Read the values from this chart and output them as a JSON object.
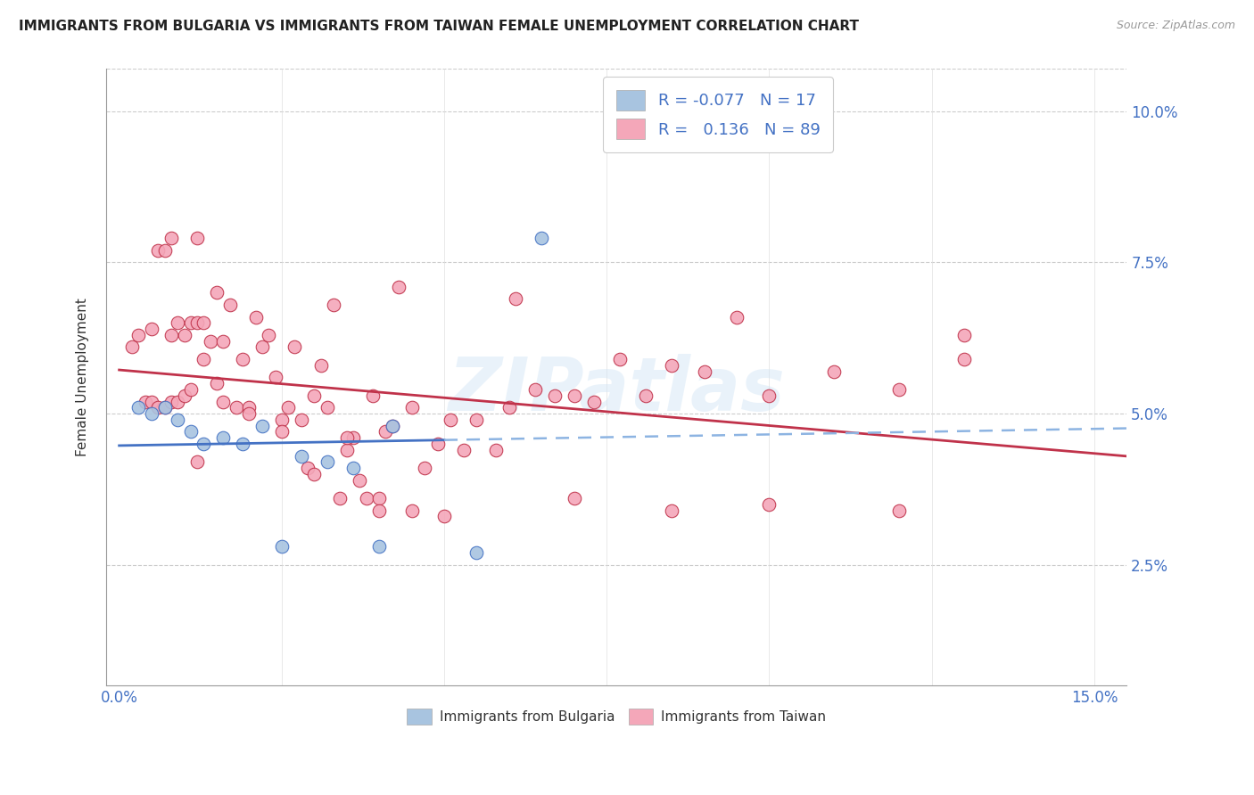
{
  "title": "IMMIGRANTS FROM BULGARIA VS IMMIGRANTS FROM TAIWAN FEMALE UNEMPLOYMENT CORRELATION CHART",
  "source": "Source: ZipAtlas.com",
  "ylabel": "Female Unemployment",
  "watermark": "ZIPatlas",
  "legend_R_bulgaria": "-0.077",
  "legend_N_bulgaria": "17",
  "legend_R_taiwan": "0.136",
  "legend_N_taiwan": "89",
  "color_bulgaria": "#a8c4e0",
  "color_taiwan": "#f4a7b9",
  "line_color_bulgaria_solid": "#4472c4",
  "line_color_bulgaria_dashed": "#8db4e2",
  "line_color_taiwan": "#c0324a",
  "background_color": "#ffffff",
  "xlim": [
    -0.002,
    0.155
  ],
  "ylim": [
    0.005,
    0.107
  ],
  "x_tick_positions": [
    0.0,
    0.025,
    0.05,
    0.075,
    0.1,
    0.125,
    0.15
  ],
  "y_tick_positions": [
    0.025,
    0.05,
    0.075,
    0.1
  ],
  "y_tick_labels": [
    "2.5%",
    "5.0%",
    "7.5%",
    "10.0%"
  ],
  "bx": [
    0.003,
    0.005,
    0.007,
    0.009,
    0.011,
    0.013,
    0.016,
    0.019,
    0.022,
    0.025,
    0.028,
    0.032,
    0.036,
    0.04,
    0.055,
    0.065,
    0.042
  ],
  "by": [
    0.051,
    0.05,
    0.051,
    0.049,
    0.047,
    0.045,
    0.046,
    0.045,
    0.048,
    0.028,
    0.043,
    0.042,
    0.041,
    0.028,
    0.027,
    0.079,
    0.048
  ],
  "tx": [
    0.002,
    0.003,
    0.004,
    0.005,
    0.006,
    0.006,
    0.007,
    0.007,
    0.008,
    0.008,
    0.009,
    0.009,
    0.01,
    0.01,
    0.011,
    0.011,
    0.012,
    0.012,
    0.013,
    0.013,
    0.014,
    0.015,
    0.015,
    0.016,
    0.017,
    0.018,
    0.019,
    0.02,
    0.021,
    0.022,
    0.023,
    0.024,
    0.025,
    0.026,
    0.027,
    0.028,
    0.029,
    0.03,
    0.031,
    0.032,
    0.033,
    0.034,
    0.035,
    0.036,
    0.037,
    0.038,
    0.039,
    0.04,
    0.041,
    0.042,
    0.043,
    0.045,
    0.047,
    0.049,
    0.051,
    0.053,
    0.055,
    0.058,
    0.061,
    0.064,
    0.067,
    0.07,
    0.073,
    0.077,
    0.081,
    0.085,
    0.09,
    0.095,
    0.1,
    0.11,
    0.12,
    0.13,
    0.005,
    0.008,
    0.012,
    0.016,
    0.02,
    0.025,
    0.03,
    0.035,
    0.04,
    0.045,
    0.05,
    0.06,
    0.07,
    0.085,
    0.1,
    0.12,
    0.13
  ],
  "ty": [
    0.061,
    0.063,
    0.052,
    0.052,
    0.077,
    0.051,
    0.077,
    0.051,
    0.079,
    0.052,
    0.052,
    0.065,
    0.053,
    0.063,
    0.054,
    0.065,
    0.065,
    0.079,
    0.059,
    0.065,
    0.062,
    0.07,
    0.055,
    0.062,
    0.068,
    0.051,
    0.059,
    0.051,
    0.066,
    0.061,
    0.063,
    0.056,
    0.049,
    0.051,
    0.061,
    0.049,
    0.041,
    0.053,
    0.058,
    0.051,
    0.068,
    0.036,
    0.044,
    0.046,
    0.039,
    0.036,
    0.053,
    0.036,
    0.047,
    0.048,
    0.071,
    0.051,
    0.041,
    0.045,
    0.049,
    0.044,
    0.049,
    0.044,
    0.069,
    0.054,
    0.053,
    0.053,
    0.052,
    0.059,
    0.053,
    0.058,
    0.057,
    0.066,
    0.053,
    0.057,
    0.054,
    0.063,
    0.064,
    0.063,
    0.042,
    0.052,
    0.05,
    0.047,
    0.04,
    0.046,
    0.034,
    0.034,
    0.033,
    0.051,
    0.036,
    0.034,
    0.035,
    0.034,
    0.059
  ]
}
